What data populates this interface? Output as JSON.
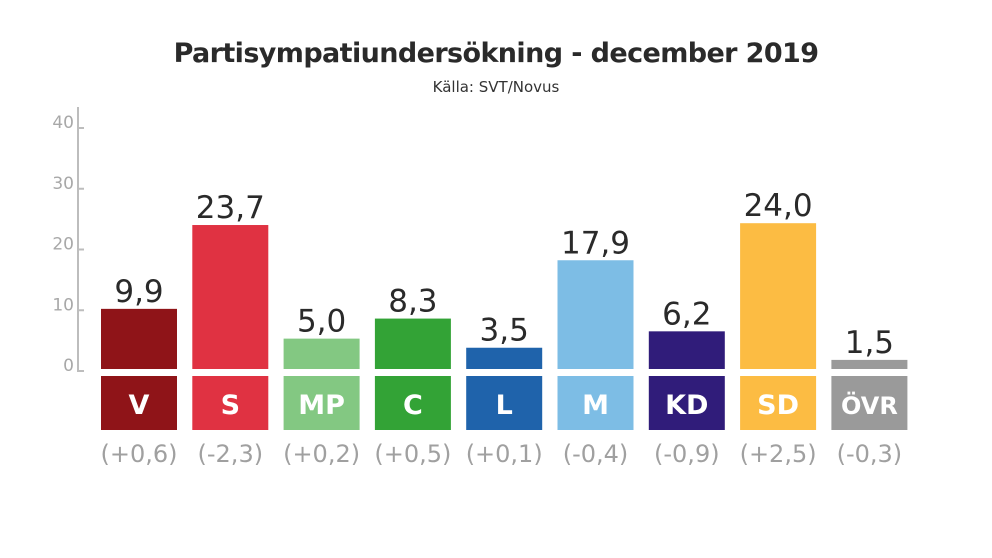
{
  "chart_data": {
    "type": "bar",
    "title": "Partisympatiundersökning - december 2019",
    "subtitle": "Källa: SVT/Novus",
    "xlabel": "",
    "ylabel": "",
    "ylim": [
      0,
      40
    ],
    "yticks": [
      0,
      10,
      20,
      30,
      40
    ],
    "grid": false,
    "categories": [
      "V",
      "S",
      "MP",
      "C",
      "L",
      "M",
      "KD",
      "SD",
      "ÖVR"
    ],
    "values": [
      9.9,
      23.7,
      5.0,
      8.3,
      3.5,
      17.9,
      6.2,
      24.0,
      1.5
    ],
    "value_labels": [
      "9,9",
      "23,7",
      "5,0",
      "8,3",
      "3,5",
      "17,9",
      "6,2",
      "24,0",
      "1,5"
    ],
    "changes": [
      0.6,
      -2.3,
      0.2,
      0.5,
      0.1,
      -0.4,
      -0.9,
      2.5,
      -0.3
    ],
    "change_labels": [
      "(+0,6)",
      "(-2,3)",
      "(+0,2)",
      "(+0,5)",
      "(+0,1)",
      "(-0,4)",
      "(-0,9)",
      "(+2,5)",
      "(-0,3)"
    ],
    "colors": [
      "#8f1418",
      "#e03242",
      "#83c882",
      "#33a336",
      "#1f63ab",
      "#7dbde5",
      "#301c7a",
      "#fcbc43",
      "#9a9a9a"
    ]
  }
}
